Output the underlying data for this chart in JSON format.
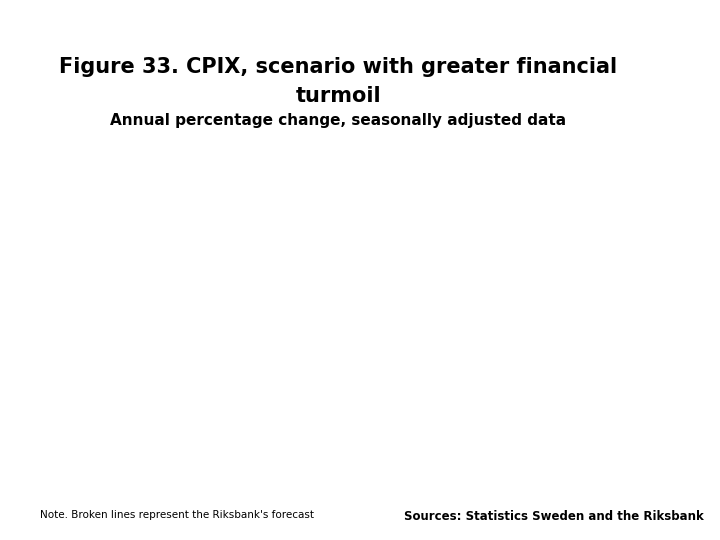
{
  "title_line1": "Figure 33. CPIX, scenario with greater financial",
  "title_line2": "turmoil",
  "subtitle": "Annual percentage change, seasonally adjusted data",
  "footer_note": "Note. Broken lines represent the Riksbank's forecast",
  "footer_sources": "Sources: Statistics Sweden and the Riksbank",
  "background_color": "#ffffff",
  "banner_color": "#1a3a6e",
  "logo_bg_color": "#1a3a6e",
  "title_fontsize": 15,
  "subtitle_fontsize": 11,
  "footer_note_fontsize": 7.5,
  "footer_sources_fontsize": 8.5
}
